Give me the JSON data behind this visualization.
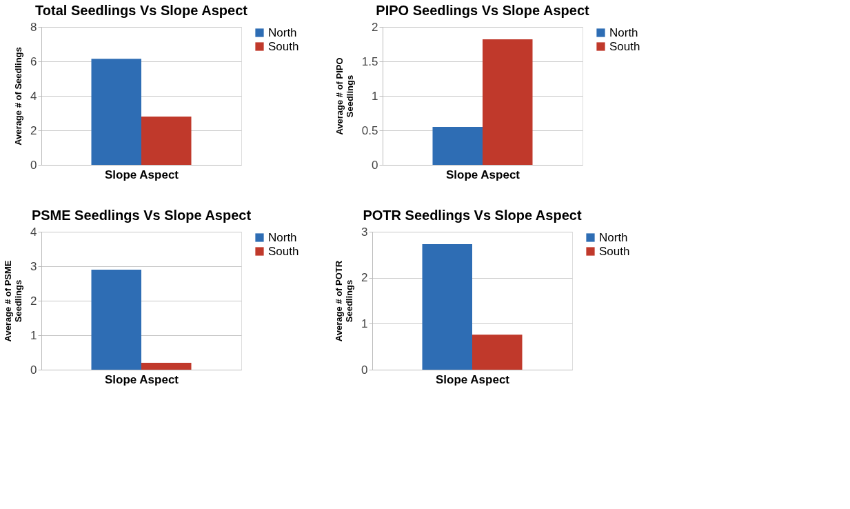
{
  "chart_data": [
    {
      "type": "bar",
      "title": "Total Seedlings Vs Slope Aspect",
      "xlabel": "Slope Aspect",
      "ylabel": "Average # of Seedlings",
      "categories": [
        null
      ],
      "series": [
        {
          "name": "North",
          "color": "#2e6db4",
          "values": [
            6.15
          ]
        },
        {
          "name": "South",
          "color": "#c0392b",
          "values": [
            2.8
          ]
        }
      ],
      "ylim": [
        0,
        8
      ],
      "yticks": [
        0,
        2,
        4,
        6,
        8
      ],
      "grid": "y",
      "legend": "right"
    },
    {
      "type": "bar",
      "title": "PIPO Seedlings Vs Slope Aspect",
      "xlabel": "Slope Aspect",
      "ylabel": "Average # of PIPO\nSeedlings",
      "categories": [
        null
      ],
      "series": [
        {
          "name": "North",
          "color": "#2e6db4",
          "values": [
            0.55
          ]
        },
        {
          "name": "South",
          "color": "#c0392b",
          "values": [
            1.82
          ]
        }
      ],
      "ylim": [
        0,
        2
      ],
      "yticks": [
        0,
        0.5,
        1,
        1.5,
        2
      ],
      "grid": "y",
      "legend": "right"
    },
    {
      "type": "bar",
      "title": "PSME Seedlings Vs Slope Aspect",
      "xlabel": "Slope Aspect",
      "ylabel": "Average # of PSME\nSeedlings",
      "categories": [
        null
      ],
      "series": [
        {
          "name": "North",
          "color": "#2e6db4",
          "values": [
            2.9
          ]
        },
        {
          "name": "South",
          "color": "#c0392b",
          "values": [
            0.2
          ]
        }
      ],
      "ylim": [
        0,
        4
      ],
      "yticks": [
        0,
        1,
        2,
        3,
        4
      ],
      "grid": "y",
      "legend": "right"
    },
    {
      "type": "bar",
      "title": "POTR Seedlings Vs Slope Aspect",
      "xlabel": "Slope Aspect",
      "ylabel": "Average # of POTR\nSeedlings",
      "categories": [
        null
      ],
      "series": [
        {
          "name": "North",
          "color": "#2e6db4",
          "values": [
            2.73
          ]
        },
        {
          "name": "South",
          "color": "#c0392b",
          "values": [
            0.76
          ]
        }
      ],
      "ylim": [
        0,
        3
      ],
      "yticks": [
        0,
        1,
        2,
        3
      ],
      "grid": "y",
      "legend": "right"
    }
  ]
}
